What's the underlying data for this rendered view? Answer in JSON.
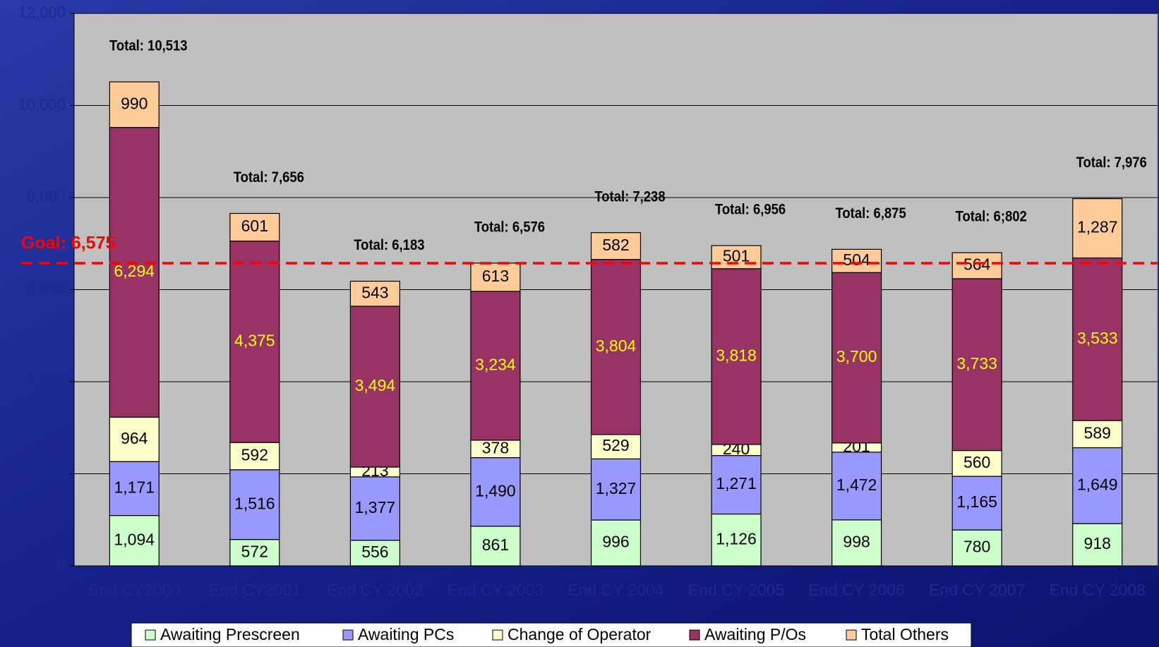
{
  "chart_data": {
    "type": "stacked_bar",
    "categories": [
      "End CY2000",
      "End CY2001",
      "End CY 2002",
      "End CY 2003",
      "End CY 2004",
      "End CY 2005",
      "End CY 2006",
      "End CY 2007",
      "End CY 2008"
    ],
    "series": [
      {
        "name": "Awaiting Prescreen",
        "color": "#ccffcc",
        "label_color": "#000000",
        "values": [
          1094,
          572,
          556,
          861,
          996,
          1126,
          998,
          780,
          918
        ],
        "value_labels": [
          "1,094",
          "572",
          "556",
          "861",
          "996",
          "1,126",
          "998",
          "780",
          "918"
        ]
      },
      {
        "name": "Awaiting PCs",
        "color": "#9999ff",
        "label_color": "#000000",
        "values": [
          1171,
          1516,
          1377,
          1490,
          1327,
          1271,
          1472,
          1165,
          1649
        ],
        "value_labels": [
          "1,171",
          "1,516",
          "1,377",
          "1,490",
          "1,327",
          "1,271",
          "1,472",
          "1,165",
          "1,649"
        ]
      },
      {
        "name": "Change of Operator",
        "color": "#ffffcc",
        "label_color": "#000000",
        "values": [
          964,
          592,
          213,
          378,
          529,
          240,
          201,
          560,
          589
        ],
        "value_labels": [
          "964",
          "592",
          "213",
          "378",
          "529",
          "240",
          "201",
          "560",
          "589"
        ]
      },
      {
        "name": "Awaiting P/Os",
        "color": "#993366",
        "label_color": "#ffff00",
        "values": [
          6294,
          4375,
          3494,
          3234,
          3804,
          3818,
          3700,
          3733,
          3533
        ],
        "value_labels": [
          "6,294",
          "4,375",
          "3,494",
          "3,234",
          "3,804",
          "3,818",
          "3,700",
          "3,733",
          "3,533"
        ]
      },
      {
        "name": "Total Others",
        "color": "#ffcc99",
        "label_color": "#000000",
        "values": [
          990,
          601,
          543,
          613,
          582,
          501,
          504,
          564,
          1287
        ],
        "value_labels": [
          "990",
          "601",
          "543",
          "613",
          "582",
          "501",
          "504",
          "564",
          "1,287"
        ]
      }
    ],
    "annotations": [
      "Total: 10,513",
      "Total: 7,656",
      "Total: 6,183",
      "Total: 6,576",
      "Total: 7,238",
      "Total: 6,956",
      "Total: 6,875",
      "Total: 6;802",
      "Total: 7,976"
    ],
    "goal": {
      "value": 6575,
      "label": "Goal: 6,575",
      "color": "#ff0000"
    },
    "ylim": [
      0,
      12000
    ],
    "yticks": [
      0,
      {
        "value": 2000,
        "label": "2,000"
      },
      {
        "value": 4000,
        "label": "4,000"
      },
      {
        "value": 6000,
        "label": "6,000"
      },
      {
        "value": 8000,
        "label": "8,000"
      },
      {
        "value": 10000,
        "label": "10,000"
      },
      {
        "value": 12000,
        "label": "12,000"
      }
    ],
    "grid": true,
    "legend": "bottom"
  }
}
